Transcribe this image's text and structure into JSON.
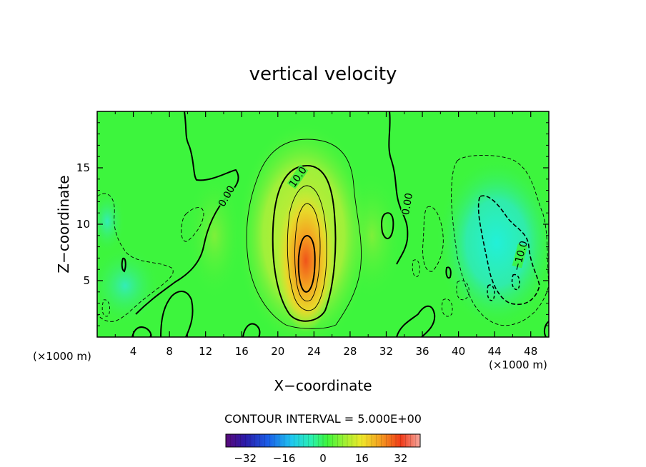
{
  "chart_data": {
    "type": "contour",
    "title": "vertical velocity",
    "xlabel": "X−coordinate",
    "ylabel": "Z−coordinate",
    "x_unit_left": "(×1000 m)",
    "x_unit_right": "(×1000 m)",
    "xlim": [
      0,
      50
    ],
    "ylim": [
      0,
      20
    ],
    "x_ticks": [
      4,
      8,
      12,
      16,
      20,
      24,
      28,
      32,
      36,
      40,
      44,
      48
    ],
    "y_ticks": [
      5,
      10,
      15
    ],
    "contour_interval_label": "CONTOUR INTERVAL = 5.000E+00",
    "contour_labels": [
      {
        "text": "10.0",
        "x": 22.2,
        "y": 14.2,
        "rotate": -55
      },
      {
        "text": "0.00",
        "x": 14.3,
        "y": 12.5,
        "rotate": -60
      },
      {
        "text": "0.00",
        "x": 34.3,
        "y": 11.8,
        "rotate": -80
      },
      {
        "text": "−10.0",
        "x": 46.8,
        "y": 7.2,
        "rotate": -75
      }
    ],
    "features": [
      {
        "kind": "updraft",
        "x": 23,
        "y": 7,
        "peak": 32
      },
      {
        "kind": "downdraft",
        "x": 44.5,
        "y": 8,
        "peak": -15
      },
      {
        "kind": "downdraft",
        "x": 3.5,
        "y": 3,
        "peak": -10
      }
    ],
    "colorbar": {
      "range": [
        -40,
        40
      ],
      "ticks": [
        -32,
        -16,
        0,
        16,
        32
      ],
      "tick_labels": [
        "−32",
        "−16",
        "0",
        "16",
        "32"
      ]
    },
    "colors": {
      "background_field": "#3df53d",
      "frame": "#000000"
    }
  }
}
